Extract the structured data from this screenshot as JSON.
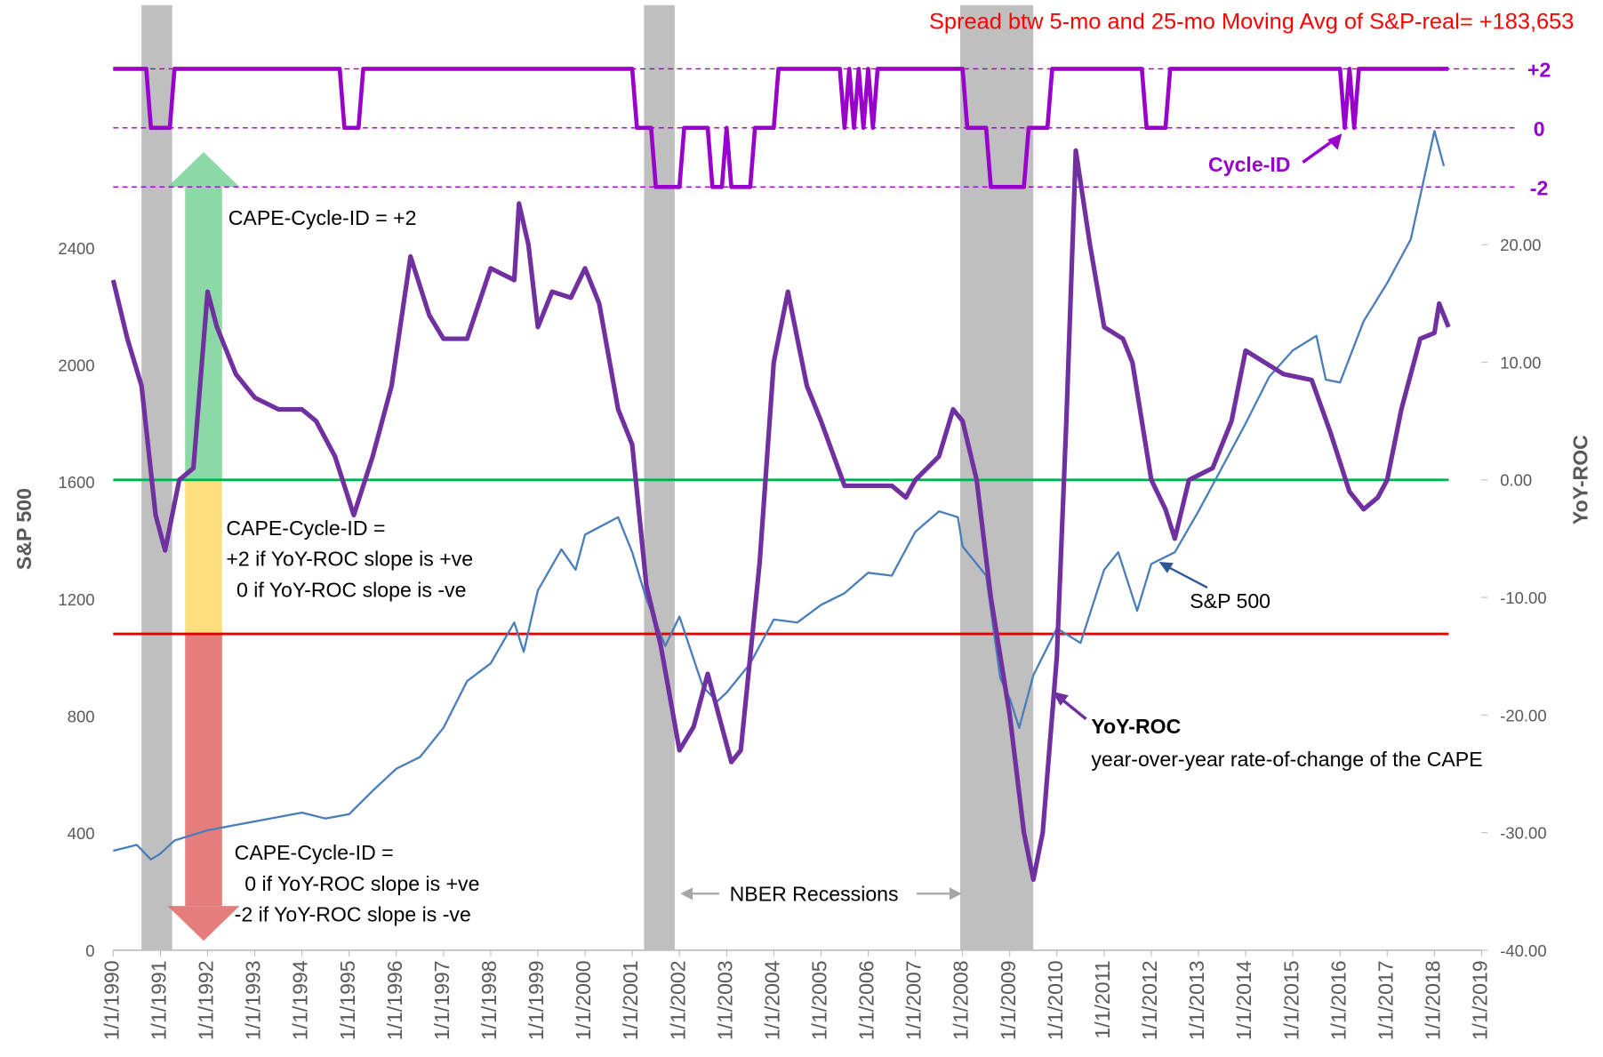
{
  "chart_data": {
    "type": "line",
    "title": "Spread btw 5-mo and 25-mo Moving Avg of S&P-real= +183,653",
    "y_label": "S&P 500",
    "y2_label": "YoY-ROC",
    "xlim": [
      1990,
      2019
    ],
    "xticks": [
      {
        "value": 1990,
        "label": "1/1/1990"
      },
      {
        "value": 1991,
        "label": "1/1/1991"
      },
      {
        "value": 1992,
        "label": "1/1/1992"
      },
      {
        "value": 1993,
        "label": "1/1/1993"
      },
      {
        "value": 1994,
        "label": "1/1/1994"
      },
      {
        "value": 1995,
        "label": "1/1/1995"
      },
      {
        "value": 1996,
        "label": "1/1/1996"
      },
      {
        "value": 1997,
        "label": "1/1/1997"
      },
      {
        "value": 1998,
        "label": "1/1/1998"
      },
      {
        "value": 1999,
        "label": "1/1/1999"
      },
      {
        "value": 2000,
        "label": "1/1/2000"
      },
      {
        "value": 2001,
        "label": "1/1/2001"
      },
      {
        "value": 2002,
        "label": "1/1/2002"
      },
      {
        "value": 2003,
        "label": "1/1/2003"
      },
      {
        "value": 2004,
        "label": "1/1/2004"
      },
      {
        "value": 2005,
        "label": "1/1/2005"
      },
      {
        "value": 2006,
        "label": "1/1/2006"
      },
      {
        "value": 2007,
        "label": "1/1/2007"
      },
      {
        "value": 2008,
        "label": "1/1/2008"
      },
      {
        "value": 2009,
        "label": "1/1/2009"
      },
      {
        "value": 2010,
        "label": "1/1/2010"
      },
      {
        "value": 2011,
        "label": "1/1/2011"
      },
      {
        "value": 2012,
        "label": "1/1/2012"
      },
      {
        "value": 2013,
        "label": "1/1/2013"
      },
      {
        "value": 2014,
        "label": "1/1/2014"
      },
      {
        "value": 2015,
        "label": "1/1/2015"
      },
      {
        "value": 2016,
        "label": "1/1/2016"
      },
      {
        "value": 2017,
        "label": "1/1/2017"
      },
      {
        "value": 2018,
        "label": "1/1/2018"
      },
      {
        "value": 2019,
        "label": "1/1/2019"
      }
    ],
    "ylim": [
      0,
      3230
    ],
    "yticks": [
      0,
      400,
      800,
      1200,
      1600,
      2000,
      2400
    ],
    "y2lim": [
      -40,
      40.38
    ],
    "y2ticks": [
      {
        "value": -40,
        "label": "-40.00"
      },
      {
        "value": -30,
        "label": "-30.00"
      },
      {
        "value": -20,
        "label": "-20.00"
      },
      {
        "value": -10,
        "label": "-10.00"
      },
      {
        "value": 0,
        "label": "0.00"
      },
      {
        "value": 10,
        "label": "10.00"
      },
      {
        "value": 20,
        "label": "20.00"
      }
    ],
    "y3lim": [
      -2,
      2
    ],
    "y3ticks": [
      {
        "value": 2,
        "label": "+2"
      },
      0,
      {
        "value": -2,
        "label": "-2"
      }
    ],
    "recessions": [
      [
        1990.6,
        1991.25
      ],
      [
        2001.25,
        2001.9
      ],
      [
        2007.95,
        2009.5
      ]
    ],
    "recession_color": "#bfbfbf",
    "reference_lines": [
      {
        "value": 0,
        "axis": "y2",
        "color": "#00b050"
      },
      {
        "value": -13.1,
        "axis": "y2",
        "color": "#e00000"
      }
    ],
    "series": [
      {
        "name": "S&P 500",
        "color": "#4a7ebb",
        "width": 2,
        "x": [
          1990,
          1990.5,
          1990.8,
          1991,
          1991.3,
          1992,
          1993,
          1994,
          1994.5,
          1995,
          1995.5,
          1996,
          1996.5,
          1997,
          1997.5,
          1998,
          1998.5,
          1998.7,
          1999,
          1999.5,
          1999.8,
          2000,
          2000.7,
          2001,
          2001.3,
          2001.7,
          2002,
          2002.5,
          2002.8,
          2003,
          2003.5,
          2004,
          2004.5,
          2005,
          2005.5,
          2006,
          2006.5,
          2007,
          2007.5,
          2007.9,
          2008,
          2008.5,
          2008.8,
          2009,
          2009.2,
          2009.5,
          2010,
          2010.5,
          2011,
          2011.3,
          2011.7,
          2012,
          2012.5,
          2013,
          2013.5,
          2014,
          2014.5,
          2015,
          2015.5,
          2015.7,
          2016,
          2016.5,
          2017,
          2017.5,
          2018,
          2018.2
        ],
        "values": [
          340,
          360,
          310,
          330,
          375,
          410,
          440,
          470,
          450,
          465,
          545,
          620,
          660,
          760,
          920,
          980,
          1120,
          1020,
          1230,
          1370,
          1300,
          1420,
          1480,
          1360,
          1200,
          1040,
          1140,
          900,
          850,
          880,
          980,
          1130,
          1120,
          1180,
          1220,
          1290,
          1280,
          1430,
          1500,
          1480,
          1380,
          1280,
          930,
          860,
          760,
          940,
          1100,
          1050,
          1300,
          1360,
          1160,
          1320,
          1360,
          1500,
          1650,
          1800,
          1960,
          2050,
          2100,
          1950,
          1940,
          2150,
          2280,
          2430,
          2800,
          2680
        ]
      },
      {
        "name": "YoY-ROC",
        "color": "#7030a0",
        "width": 4.5,
        "axis": "y2",
        "x": [
          1990,
          1990.3,
          1990.6,
          1990.9,
          1991.1,
          1991.4,
          1991.7,
          1992,
          1992.2,
          1992.6,
          1993,
          1993.5,
          1994,
          1994.3,
          1994.7,
          1995.1,
          1995.5,
          1995.9,
          1996.3,
          1996.7,
          1997,
          1997.5,
          1998,
          1998.5,
          1998.6,
          1998.8,
          1999,
          1999.3,
          1999.7,
          2000,
          2000.3,
          2000.7,
          2001,
          2001.3,
          2001.6,
          2002,
          2002.3,
          2002.6,
          2002.9,
          2003.1,
          2003.3,
          2003.7,
          2004,
          2004.3,
          2004.7,
          2005,
          2005.5,
          2006,
          2006.5,
          2006.8,
          2007,
          2007.5,
          2007.8,
          2008,
          2008.3,
          2008.6,
          2009,
          2009.3,
          2009.5,
          2009.7,
          2010,
          2010.2,
          2010.4,
          2010.7,
          2011,
          2011.4,
          2011.6,
          2012,
          2012.3,
          2012.5,
          2012.8,
          2013.3,
          2013.7,
          2014,
          2014.4,
          2014.8,
          2015.4,
          2015.8,
          2016.2,
          2016.5,
          2016.8,
          2017,
          2017.3,
          2017.7,
          2018,
          2018.1,
          2018.3
        ],
        "values": [
          17,
          12,
          8,
          -3,
          -6,
          0,
          1,
          16,
          13,
          9,
          7,
          6,
          6,
          5,
          2,
          -3,
          2,
          8,
          19,
          14,
          12,
          12,
          18,
          17,
          23.5,
          20,
          13,
          16,
          15.5,
          18,
          15,
          6,
          3,
          -9,
          -14,
          -23,
          -21,
          -16.5,
          -21,
          -24,
          -23,
          -7,
          10,
          16,
          8,
          5,
          -0.5,
          -0.5,
          -0.5,
          -1.5,
          0,
          2,
          6,
          5,
          0,
          -10,
          -20,
          -30,
          -34,
          -30,
          -15,
          5,
          28,
          20,
          13,
          12,
          10,
          0,
          -2.5,
          -5,
          0,
          1,
          5,
          11,
          10,
          9,
          8.5,
          4,
          -1,
          -2.5,
          -1.5,
          0,
          6,
          12,
          12.5,
          15,
          13
        ]
      },
      {
        "name": "Cycle-ID",
        "color": "#9900cc",
        "width": 4,
        "axis": "y3",
        "x": [
          1990,
          1990.7,
          1990.8,
          1991.2,
          1991.3,
          1994.8,
          1994.9,
          1995.2,
          1995.3,
          2001,
          2001.1,
          2001.4,
          2001.5,
          2002,
          2002.1,
          2002.6,
          2002.7,
          2002.9,
          2003,
          2003.1,
          2003.5,
          2003.6,
          2004,
          2004.1,
          2005.4,
          2005.5,
          2005.6,
          2005.7,
          2005.8,
          2005.9,
          2006,
          2006.1,
          2006.2,
          2008,
          2008.1,
          2008.5,
          2008.6,
          2009.3,
          2009.4,
          2009.8,
          2009.9,
          2011.8,
          2011.9,
          2012.3,
          2012.4,
          2016,
          2016.1,
          2016.2,
          2016.3,
          2016.4,
          2018.3
        ],
        "values": [
          2,
          2,
          0,
          0,
          2,
          2,
          0,
          0,
          2,
          2,
          0,
          0,
          -2,
          -2,
          0,
          0,
          -2,
          -2,
          0,
          -2,
          -2,
          0,
          0,
          2,
          2,
          0,
          2,
          0,
          2,
          0,
          2,
          0,
          2,
          2,
          0,
          0,
          -2,
          -2,
          0,
          0,
          2,
          2,
          0,
          0,
          2,
          2,
          0,
          2,
          0,
          2,
          2
        ]
      }
    ],
    "annotations": [
      "CAPE-Cycle-ID = +2",
      "CAPE-Cycle-ID =",
      "+2 if YoY-ROC slope is +ve",
      "0 if YoY-ROC slope is -ve",
      "CAPE-Cycle-ID =",
      "0 if YoY-ROC slope is +ve",
      "-2 if YoY-ROC slope is -ve",
      "NBER Recessions",
      "S&P 500",
      "YoY-ROC",
      "year-over-year rate-of-change of the CAPE",
      "Cycle-ID"
    ]
  }
}
